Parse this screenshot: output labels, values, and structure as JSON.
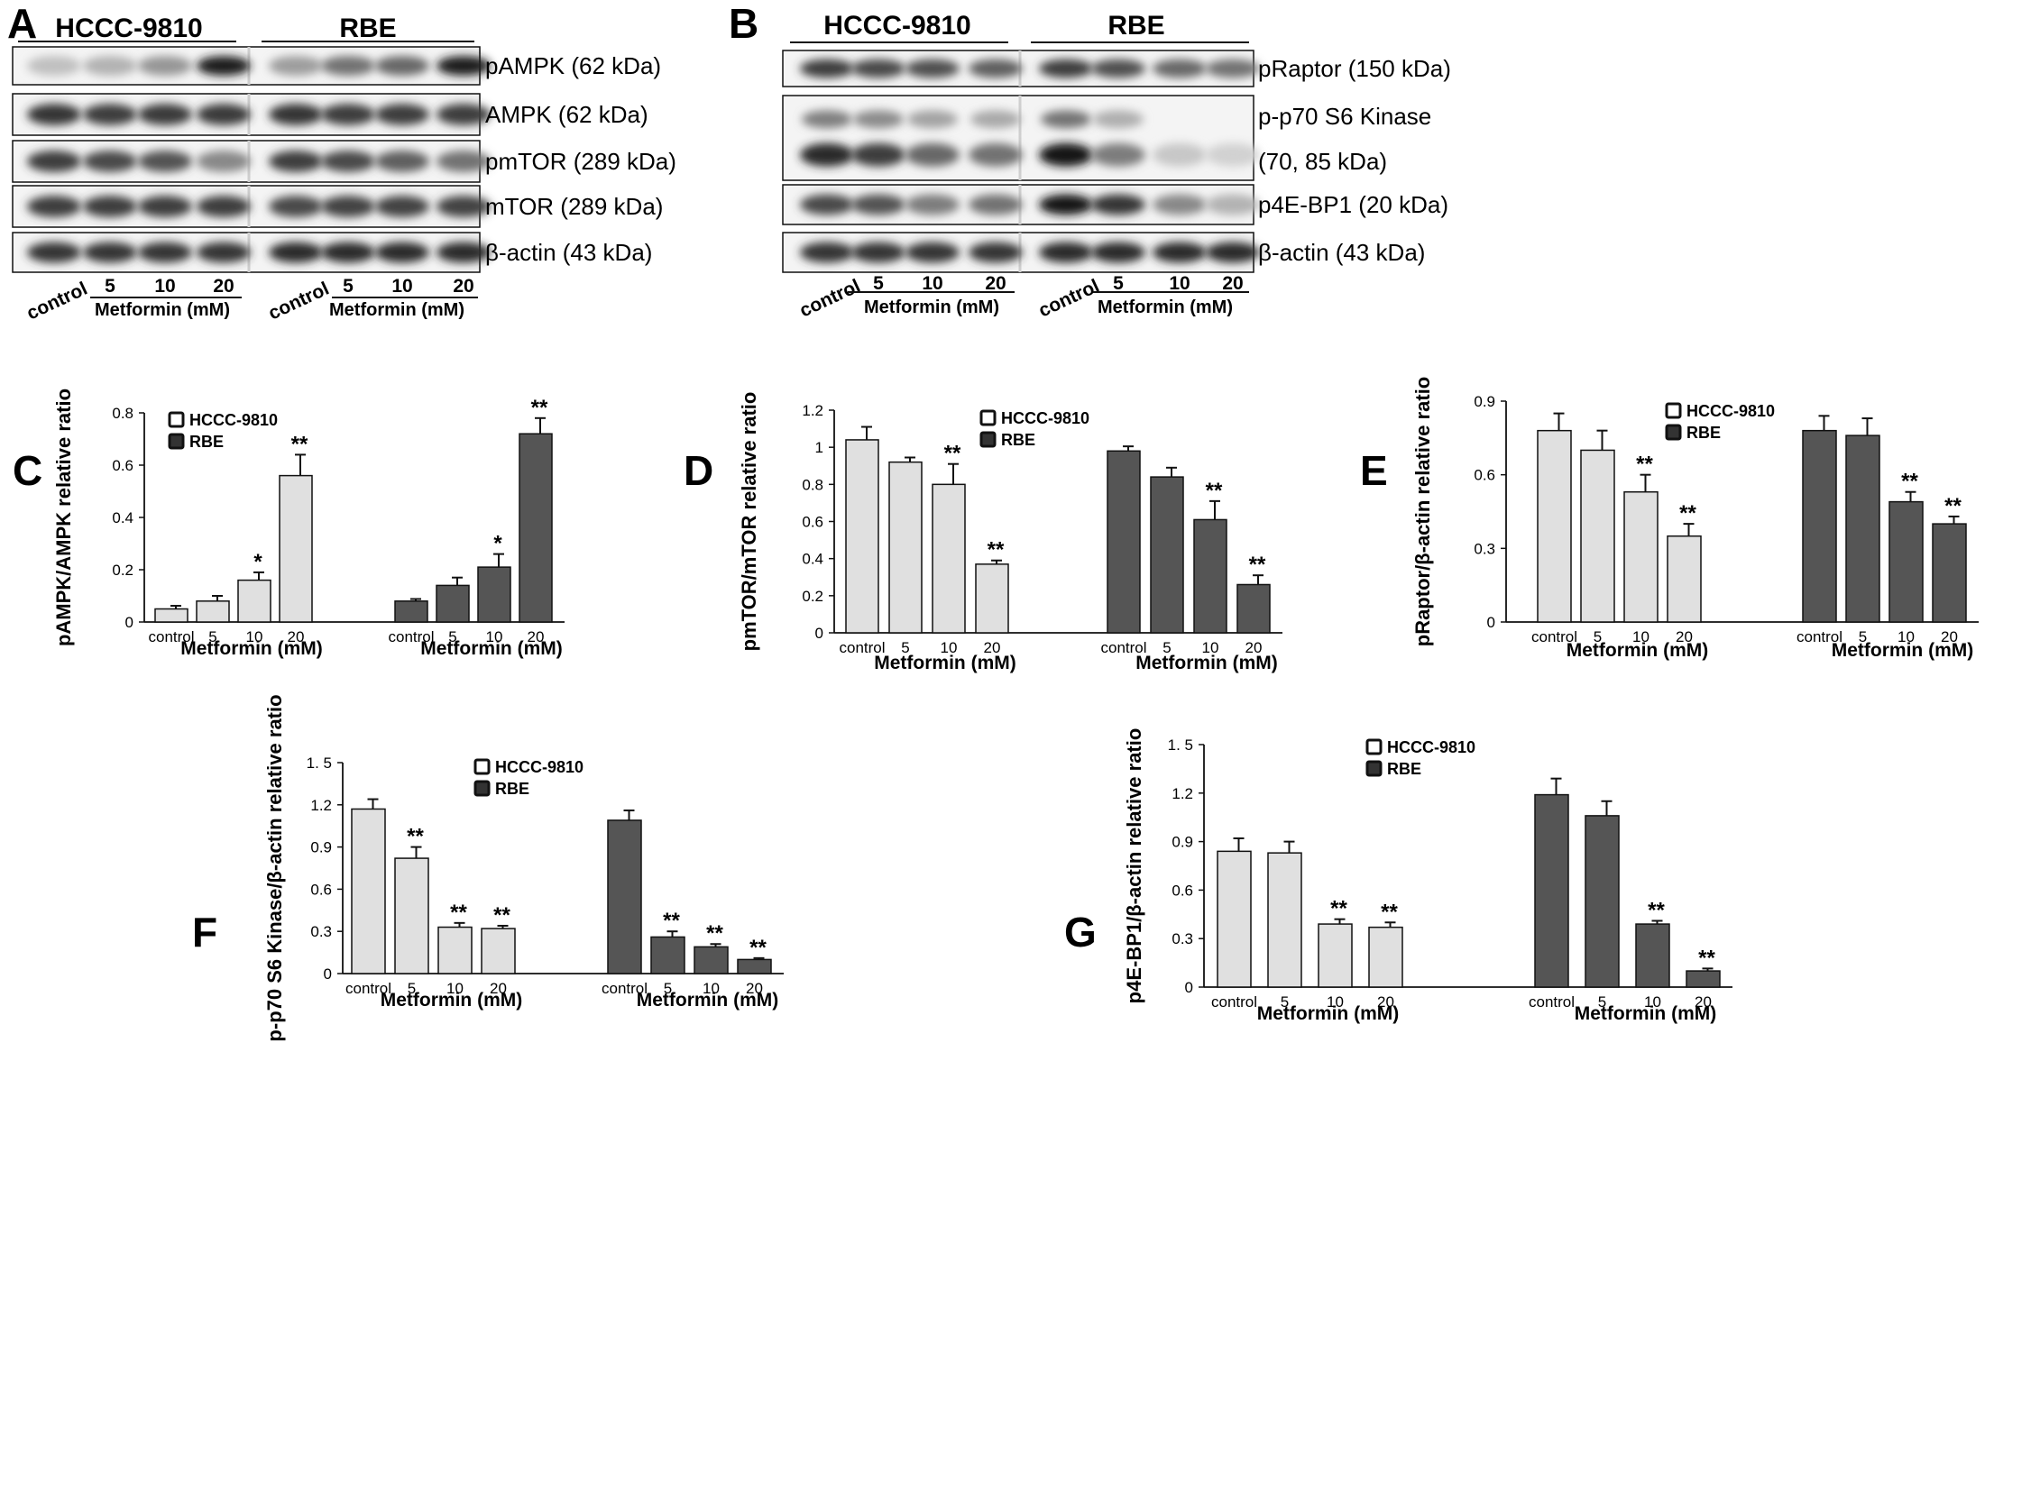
{
  "figure": {
    "blots": [
      {
        "letter": "A",
        "groups": [
          "HCCC-9810",
          "RBE"
        ],
        "lane_labels": [
          "control",
          "5",
          "10",
          "20"
        ],
        "treatment_label": "Metformin (mM)",
        "bands": [
          {
            "label": "pAMPK (62 kDa)",
            "intensity": [
              0.18,
              0.25,
              0.38,
              0.95,
              0.35,
              0.55,
              0.6,
              0.95
            ]
          },
          {
            "label": "AMPK (62 kDa)",
            "intensity": [
              0.85,
              0.8,
              0.82,
              0.82,
              0.85,
              0.8,
              0.8,
              0.8
            ]
          },
          {
            "label": "pmTOR (289 kDa)",
            "intensity": [
              0.8,
              0.75,
              0.7,
              0.45,
              0.8,
              0.75,
              0.65,
              0.55
            ]
          },
          {
            "label": "mTOR (289 kDa)",
            "intensity": [
              0.8,
              0.8,
              0.8,
              0.8,
              0.75,
              0.78,
              0.78,
              0.78
            ]
          },
          {
            "label": "β-actin (43 kDa)",
            "intensity": [
              0.85,
              0.85,
              0.85,
              0.85,
              0.9,
              0.9,
              0.9,
              0.9
            ]
          }
        ]
      },
      {
        "letter": "B",
        "groups": [
          "HCCC-9810",
          "RBE"
        ],
        "lane_labels": [
          "control",
          "5",
          "10",
          "20"
        ],
        "treatment_label": "Metformin (mM)",
        "bands": [
          {
            "label": "pRaptor (150 kDa)",
            "intensity": [
              0.8,
              0.75,
              0.72,
              0.65,
              0.8,
              0.72,
              0.6,
              0.55
            ]
          },
          {
            "label": "p-p70 S6 Kinase",
            "label2": "(70, 85 kDa)",
            "intensity": [
              0.9,
              0.8,
              0.6,
              0.55,
              1.0,
              0.5,
              0.15,
              0.1
            ]
          },
          {
            "label": "p4E-BP1 (20 kDa)",
            "intensity": [
              0.75,
              0.7,
              0.5,
              0.55,
              1.0,
              0.85,
              0.45,
              0.25
            ]
          },
          {
            "label": "β-actin (43 kDa)",
            "intensity": [
              0.85,
              0.85,
              0.85,
              0.85,
              0.9,
              0.9,
              0.9,
              0.9
            ]
          }
        ]
      }
    ],
    "legend": {
      "series1": "HCCC-9810",
      "series2": "RBE"
    }
  },
  "chart_data": [
    {
      "panel": "C",
      "type": "bar",
      "categories": [
        "control",
        "5",
        "10",
        "20"
      ],
      "xlabel": "Metformin (mM)",
      "ylabel": "pAMPK/AMPK relative ratio",
      "ylim": [
        0,
        0.8
      ],
      "yticks": [
        "0",
        "0.2",
        "0.4",
        "0.6",
        "0.8"
      ],
      "series": [
        {
          "name": "HCCC-9810",
          "values": [
            0.05,
            0.08,
            0.16,
            0.56
          ],
          "errors": [
            0.012,
            0.02,
            0.03,
            0.08
          ],
          "sig": [
            "",
            "",
            "*",
            "**"
          ]
        },
        {
          "name": "RBE",
          "values": [
            0.08,
            0.14,
            0.21,
            0.72
          ],
          "errors": [
            0.008,
            0.03,
            0.05,
            0.06
          ],
          "sig": [
            "",
            "",
            "*",
            "**"
          ]
        }
      ]
    },
    {
      "panel": "D",
      "type": "bar",
      "categories": [
        "control",
        "5",
        "10",
        "20"
      ],
      "xlabel": "Metformin (mM)",
      "ylabel": "pmTOR/mTOR relative ratio",
      "ylim": [
        0,
        1.2
      ],
      "yticks": [
        "0",
        "0.2",
        "0.4",
        "0.6",
        "0.8",
        "1",
        "1.2"
      ],
      "series": [
        {
          "name": "HCCC-9810",
          "values": [
            1.04,
            0.92,
            0.8,
            0.37
          ],
          "errors": [
            0.07,
            0.025,
            0.11,
            0.02
          ],
          "sig": [
            "",
            "",
            "**",
            "**"
          ]
        },
        {
          "name": "RBE",
          "values": [
            0.98,
            0.84,
            0.61,
            0.26
          ],
          "errors": [
            0.025,
            0.05,
            0.1,
            0.05
          ],
          "sig": [
            "",
            "",
            "**",
            "**"
          ]
        }
      ]
    },
    {
      "panel": "E",
      "type": "bar",
      "categories": [
        "control",
        "5",
        "10",
        "20"
      ],
      "xlabel": "Metformin (mM)",
      "ylabel": "pRaptor/β-actin relative ratio",
      "ylim": [
        0,
        0.9
      ],
      "yticks": [
        "0",
        "0.3",
        "0.6",
        "0.9"
      ],
      "series": [
        {
          "name": "HCCC-9810",
          "values": [
            0.78,
            0.7,
            0.53,
            0.35
          ],
          "errors": [
            0.07,
            0.08,
            0.07,
            0.05
          ],
          "sig": [
            "",
            "",
            "**",
            "**"
          ]
        },
        {
          "name": "RBE",
          "values": [
            0.78,
            0.76,
            0.49,
            0.4
          ],
          "errors": [
            0.06,
            0.07,
            0.04,
            0.03
          ],
          "sig": [
            "",
            "",
            "**",
            "**"
          ]
        }
      ]
    },
    {
      "panel": "F",
      "type": "bar",
      "categories": [
        "control",
        "5",
        "10",
        "20"
      ],
      "xlabel": "Metformin (mM)",
      "ylabel": "p-p70 S6 Kinase/β-actin relative ratio",
      "ylim": [
        0,
        1.5
      ],
      "yticks": [
        "0",
        "0.3",
        "0.6",
        "0.9",
        "1.2",
        "1. 5"
      ],
      "series": [
        {
          "name": "HCCC-9810",
          "values": [
            1.17,
            0.82,
            0.33,
            0.32
          ],
          "errors": [
            0.07,
            0.08,
            0.03,
            0.02
          ],
          "sig": [
            "",
            "**",
            "**",
            "**"
          ]
        },
        {
          "name": "RBE",
          "values": [
            1.09,
            0.26,
            0.19,
            0.1
          ],
          "errors": [
            0.07,
            0.04,
            0.02,
            0.01
          ],
          "sig": [
            "",
            "**",
            "**",
            "**"
          ]
        }
      ]
    },
    {
      "panel": "G",
      "type": "bar",
      "categories": [
        "control",
        "5",
        "10",
        "20"
      ],
      "xlabel": "Metformin (mM)",
      "ylabel": "p4E-BP1/β-actin relative ratio",
      "ylim": [
        0,
        1.5
      ],
      "yticks": [
        "0",
        "0.3",
        "0.6",
        "0.9",
        "1.2",
        "1. 5"
      ],
      "series": [
        {
          "name": "HCCC-9810",
          "values": [
            0.84,
            0.83,
            0.39,
            0.37
          ],
          "errors": [
            0.08,
            0.07,
            0.03,
            0.03
          ],
          "sig": [
            "",
            "",
            "**",
            "**"
          ]
        },
        {
          "name": "RBE",
          "values": [
            1.19,
            1.06,
            0.39,
            0.1
          ],
          "errors": [
            0.1,
            0.09,
            0.02,
            0.015
          ],
          "sig": [
            "",
            "",
            "**",
            "**"
          ]
        }
      ]
    }
  ],
  "colors": {
    "hccc_bar": "#e0e0e0",
    "rbe_bar": "#555555",
    "ink": "#111111"
  }
}
